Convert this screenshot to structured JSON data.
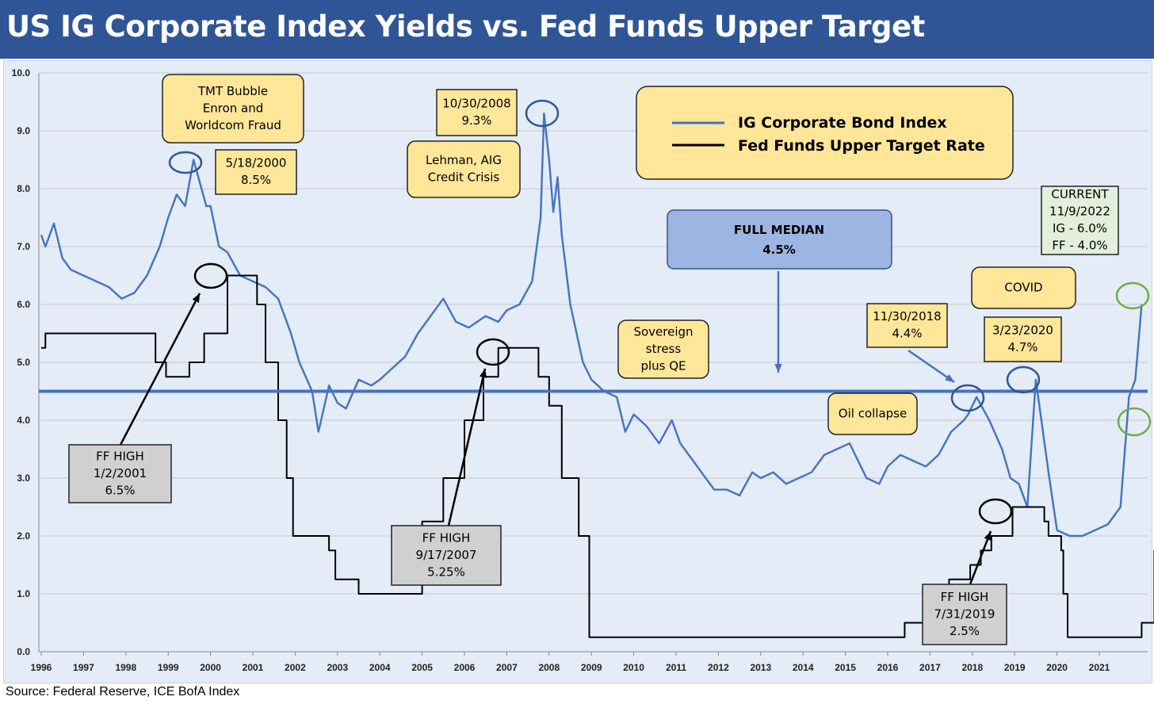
{
  "header": {
    "title": "US IG Corporate Index Yields vs. Fed Funds Upper Target"
  },
  "footer": {
    "source": "Source: Federal Reserve, ICE BofA Index"
  },
  "colors": {
    "title_bg": "#2f5597",
    "ig_line": "#4472c4",
    "ff_line": "#000000",
    "median": "#4472c4",
    "box_yellow": "#ffe699",
    "box_gray": "#d0d0d0",
    "box_blue": "#9db5e2",
    "box_green": "#e2efda",
    "circle_blue": "#2f5597",
    "circle_green": "#70ad47"
  },
  "chart_data": {
    "type": "line",
    "title": "US IG Corporate Index Yields vs. Fed Funds Upper Target",
    "xlim": [
      1996.0,
      2022.0
    ],
    "ylim": [
      0,
      10
    ],
    "grid": true,
    "legend_position": "top-right",
    "y_ticks": [
      "0.0",
      "1.0",
      "2.0",
      "3.0",
      "4.0",
      "5.0",
      "6.0",
      "7.0",
      "8.0",
      "9.0",
      "10.0"
    ],
    "x_ticks": [
      "1996",
      "1997",
      "1998",
      "1999",
      "2000",
      "2001",
      "2002",
      "2003",
      "2004",
      "2005",
      "2006",
      "2007",
      "2008",
      "2009",
      "2010",
      "2011",
      "2012",
      "2013",
      "2014",
      "2015",
      "2016",
      "2017",
      "2018",
      "2019",
      "2020",
      "2021"
    ],
    "median": {
      "value": 4.5,
      "label_line1": "FULL MEDIAN",
      "label_line2": "4.5%"
    },
    "series": [
      {
        "name": "IG Corporate Bond Index",
        "color": "#4472c4",
        "x": [
          1996.0,
          1996.1,
          1996.3,
          1996.5,
          1996.7,
          1997.0,
          1997.3,
          1997.6,
          1997.9,
          1998.2,
          1998.5,
          1998.8,
          1999.0,
          1999.2,
          1999.4,
          1999.6,
          1999.9,
          2000.0,
          2000.2,
          2000.4,
          2000.7,
          2001.0,
          2001.3,
          2001.6,
          2001.9,
          2002.1,
          2002.4,
          2002.55,
          2002.8,
          2003.0,
          2003.2,
          2003.5,
          2003.8,
          2004.0,
          2004.3,
          2004.6,
          2004.9,
          2005.2,
          2005.5,
          2005.8,
          2006.1,
          2006.5,
          2006.8,
          2007.0,
          2007.3,
          2007.6,
          2007.8,
          2007.88,
          2008.0,
          2008.1,
          2008.2,
          2008.3,
          2008.5,
          2008.8,
          2009.0,
          2009.3,
          2009.6,
          2009.8,
          2010.0,
          2010.3,
          2010.6,
          2010.9,
          2011.1,
          2011.4,
          2011.7,
          2011.9,
          2012.2,
          2012.5,
          2012.8,
          2013.0,
          2013.3,
          2013.6,
          2013.9,
          2014.2,
          2014.5,
          2014.8,
          2015.1,
          2015.3,
          2015.5,
          2015.8,
          2016.0,
          2016.3,
          2016.6,
          2016.9,
          2017.2,
          2017.5,
          2017.8,
          2017.9,
          2018.1,
          2018.4,
          2018.7,
          2018.9,
          2019.1,
          2019.2,
          2019.3,
          2019.5,
          2019.8,
          2020.0,
          2020.3,
          2020.6,
          2020.9,
          2021.2,
          2021.5,
          2021.7,
          2021.85,
          2022.0
        ],
        "values": [
          7.2,
          7.0,
          7.4,
          6.8,
          6.6,
          6.5,
          6.4,
          6.3,
          6.1,
          6.2,
          6.5,
          7.0,
          7.5,
          7.9,
          7.7,
          8.5,
          7.7,
          7.7,
          7.0,
          6.9,
          6.5,
          6.4,
          6.3,
          6.1,
          5.5,
          5.0,
          4.5,
          3.8,
          4.6,
          4.3,
          4.2,
          4.7,
          4.6,
          4.7,
          4.9,
          5.1,
          5.5,
          5.8,
          6.1,
          5.7,
          5.6,
          5.8,
          5.7,
          5.9,
          6.0,
          6.4,
          7.5,
          9.3,
          8.5,
          7.6,
          8.2,
          7.2,
          6.0,
          5.0,
          4.7,
          4.5,
          4.4,
          3.8,
          4.1,
          3.9,
          3.6,
          4.0,
          3.6,
          3.3,
          3.0,
          2.8,
          2.8,
          2.7,
          3.1,
          3.0,
          3.1,
          2.9,
          3.0,
          3.1,
          3.4,
          3.5,
          3.6,
          3.3,
          3.0,
          2.9,
          3.2,
          3.4,
          3.3,
          3.2,
          3.4,
          3.8,
          4.0,
          4.1,
          4.4,
          4.0,
          3.5,
          3.0,
          2.9,
          2.7,
          2.5,
          4.7,
          3.1,
          2.1,
          2.0,
          2.0,
          2.1,
          2.2,
          2.5,
          4.4,
          4.7,
          6.0
        ]
      },
      {
        "name": "Fed Funds Upper Target Rate",
        "color": "#000000",
        "x": [
          1996.0,
          1996.1,
          1997.2,
          1997.7,
          1998.5,
          1998.7,
          1998.95,
          1999.5,
          1999.85,
          2000.4,
          2000.9,
          2001.0,
          2001.1,
          2001.3,
          2001.6,
          2001.8,
          2001.95,
          2002.8,
          2002.95,
          2003.5,
          2004.45,
          2005.0,
          2005.5,
          2006.0,
          2006.45,
          2006.8,
          2007.6,
          2007.75,
          2008.0,
          2008.3,
          2008.7,
          2008.95,
          2015.9,
          2016.4,
          2016.9,
          2017.2,
          2017.45,
          2017.95,
          2018.2,
          2018.45,
          2018.95,
          2019.55,
          2019.7,
          2019.8,
          2020.1,
          2020.15,
          2020.25,
          2021.9,
          2022.0,
          2022.3,
          2022.5,
          2022.8,
          2022.9
        ],
        "values": [
          5.25,
          5.5,
          5.5,
          5.5,
          5.5,
          5.0,
          4.75,
          5.0,
          5.5,
          6.5,
          6.5,
          6.5,
          6.0,
          5.0,
          4.0,
          3.0,
          2.0,
          1.75,
          1.25,
          1.0,
          1.0,
          2.25,
          3.0,
          4.0,
          4.75,
          5.25,
          5.25,
          4.75,
          4.25,
          3.0,
          2.0,
          0.25,
          0.25,
          0.5,
          0.75,
          1.0,
          1.25,
          1.5,
          1.75,
          2.0,
          2.5,
          2.5,
          2.25,
          2.0,
          1.75,
          1.0,
          0.25,
          0.25,
          0.5,
          1.75,
          2.5,
          3.25,
          4.0
        ]
      }
    ],
    "annotations": [
      {
        "id": "tmt",
        "style": "yellow",
        "lines": [
          "TMT Bubble",
          "Enron and",
          "Worldcom Fraud"
        ]
      },
      {
        "id": "peak2000",
        "style": "yellow",
        "lines": [
          "5/18/2000",
          "8.5%"
        ]
      },
      {
        "id": "peak2008",
        "style": "yellow",
        "lines": [
          "10/30/2008",
          "9.3%"
        ]
      },
      {
        "id": "lehman",
        "style": "yellow",
        "lines": [
          "Lehman, AIG",
          "Credit Crisis"
        ]
      },
      {
        "id": "sovereign",
        "style": "yellow",
        "lines": [
          "Sovereign",
          "stress",
          "plus QE"
        ]
      },
      {
        "id": "peak2018",
        "style": "yellow",
        "lines": [
          "11/30/2018",
          "4.4%"
        ]
      },
      {
        "id": "covid",
        "style": "yellow",
        "lines": [
          "COVID"
        ]
      },
      {
        "id": "peak2020",
        "style": "yellow",
        "lines": [
          "3/23/2020",
          "4.7%"
        ]
      },
      {
        "id": "oil",
        "style": "yellow",
        "lines": [
          "Oil collapse"
        ]
      },
      {
        "id": "current",
        "style": "green",
        "lines": [
          "CURRENT",
          "11/9/2022",
          "IG - 6.0%",
          "FF - 4.0%"
        ]
      },
      {
        "id": "ff2001",
        "style": "gray",
        "lines": [
          "FF HIGH",
          "1/2/2001",
          "6.5%"
        ]
      },
      {
        "id": "ff2007",
        "style": "gray",
        "lines": [
          "FF HIGH",
          "9/17/2007",
          "5.25%"
        ]
      },
      {
        "id": "ff2019",
        "style": "gray",
        "lines": [
          "FF HIGH",
          "7/31/2019",
          "2.5%"
        ]
      }
    ]
  }
}
